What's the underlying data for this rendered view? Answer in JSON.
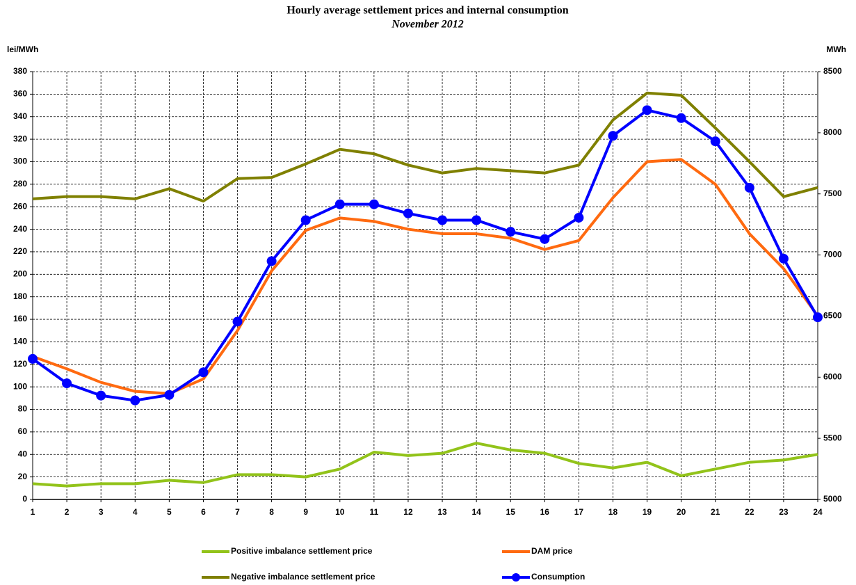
{
  "chart_data": {
    "type": "line",
    "title": "Hourly average settlement prices and internal consumption",
    "subtitle": "November 2012",
    "y_label": "lei/MWh",
    "y2_label": "MWh",
    "x": [
      1,
      2,
      3,
      4,
      5,
      6,
      7,
      8,
      9,
      10,
      11,
      12,
      13,
      14,
      15,
      16,
      17,
      18,
      19,
      20,
      21,
      22,
      23,
      24
    ],
    "xlim": [
      1,
      24
    ],
    "xticks": [
      1,
      2,
      3,
      4,
      5,
      6,
      7,
      8,
      9,
      10,
      11,
      12,
      13,
      14,
      15,
      16,
      17,
      18,
      19,
      20,
      21,
      22,
      23,
      24
    ],
    "ylim": [
      0,
      380
    ],
    "yticks": [
      0,
      20,
      40,
      60,
      80,
      100,
      120,
      140,
      160,
      180,
      200,
      220,
      240,
      260,
      280,
      300,
      320,
      340,
      360,
      380
    ],
    "y2lim": [
      5000,
      8500
    ],
    "y2ticks": [
      5000,
      5500,
      6000,
      6500,
      7000,
      7500,
      8000,
      8500
    ],
    "grid": true,
    "legend": "bottom",
    "series": [
      {
        "name": "Positive imbalance settlement price",
        "color": "#92c31a",
        "values": [
          14,
          12,
          14,
          14,
          17,
          15,
          22,
          22,
          20,
          27,
          42,
          39,
          41,
          50,
          44,
          41,
          32,
          28,
          33,
          21,
          27,
          33,
          35,
          40
        ]
      },
      {
        "name": "DAM price",
        "color": "#ff6a10",
        "values": [
          127,
          116,
          104,
          96,
          94,
          107,
          150,
          203,
          239,
          250,
          247,
          240,
          236,
          236,
          232,
          222,
          230,
          268,
          300,
          302,
          280,
          236,
          205,
          163
        ]
      },
      {
        "name": "Negative imbalance settlement price",
        "color": "#7f8000",
        "values": [
          267,
          269,
          269,
          267,
          276,
          265,
          285,
          286,
          298,
          311,
          307,
          297,
          290,
          294,
          292,
          290,
          297,
          337,
          361,
          359,
          330,
          300,
          269,
          277
        ]
      },
      {
        "name": "Consumption",
        "color": "#0000ff",
        "axis": "y2",
        "marker": "circle",
        "values": [
          6150,
          5950,
          5850,
          5810,
          5855,
          6040,
          6455,
          6950,
          7285,
          7415,
          7415,
          7340,
          7285,
          7285,
          7190,
          7130,
          7305,
          7975,
          8185,
          8120,
          7930,
          7550,
          6970,
          6490
        ]
      }
    ]
  }
}
